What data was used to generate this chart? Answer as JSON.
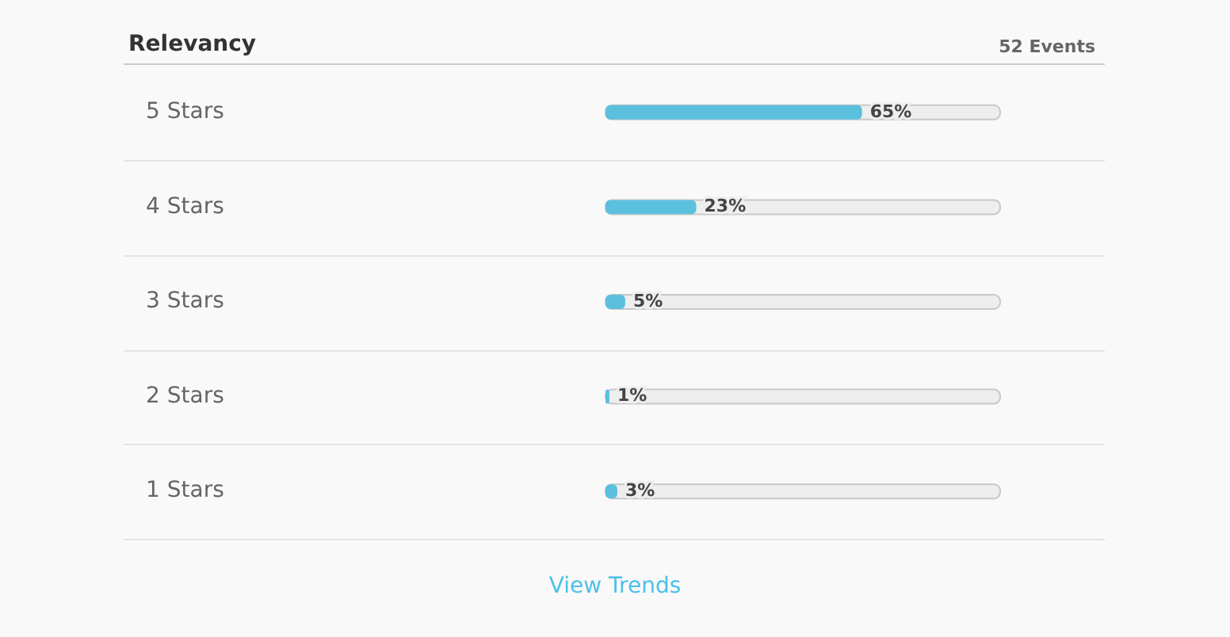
{
  "chart_data": {
    "type": "bar",
    "orientation": "horizontal",
    "title": "Relevancy",
    "categories": [
      "5 Stars",
      "4 Stars",
      "3 Stars",
      "2 Stars",
      "1 Stars"
    ],
    "values": [
      65,
      23,
      5,
      1,
      3
    ],
    "value_labels": [
      "65%",
      "23%",
      "5%",
      "1%",
      "3%"
    ],
    "color": "#5bc0de",
    "xlim": [
      0,
      100
    ],
    "tick_labels": "y",
    "annotations": [
      "52 Events",
      "View Trends"
    ]
  }
}
